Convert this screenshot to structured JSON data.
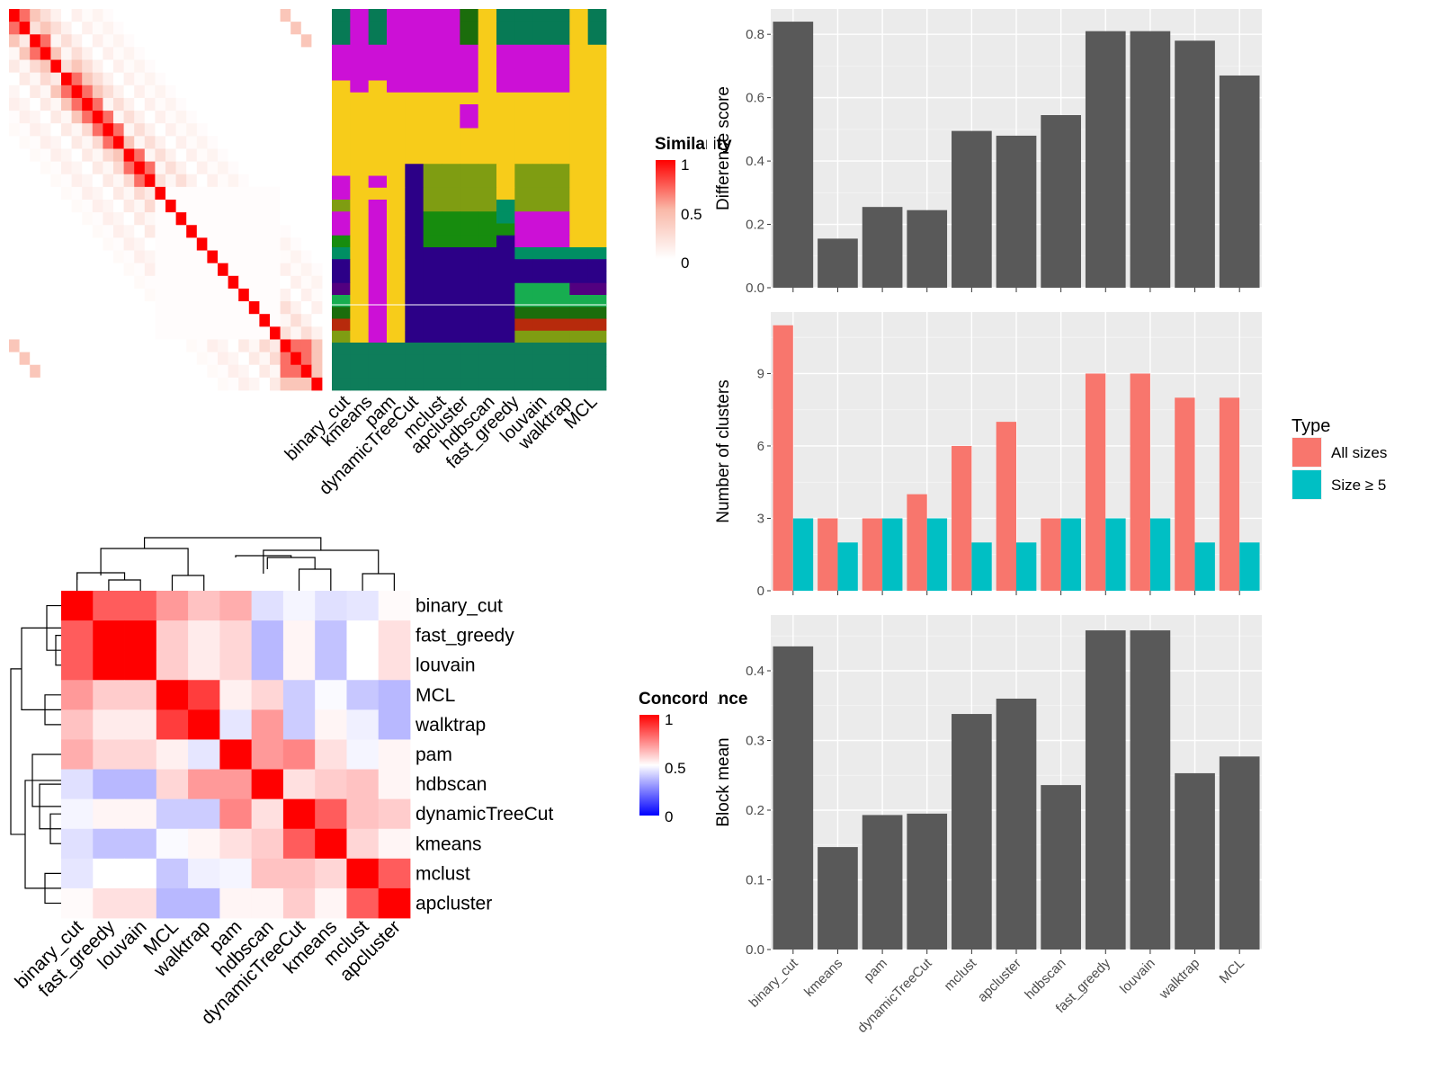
{
  "chart_data": [
    {
      "type": "heatmap",
      "title": "",
      "legend_title": "Similarity",
      "legend_ticks": [
        "1",
        "0.5",
        "0"
      ],
      "colors": {
        "low": "#ffffff",
        "mid": "#f9b8a8",
        "high": "#ff0000"
      },
      "size": 30,
      "strong_blocks": [
        [
          0,
          1
        ],
        [
          2,
          3
        ],
        [
          5,
          6
        ],
        [
          6,
          7
        ],
        [
          7,
          8
        ],
        [
          8,
          9
        ],
        [
          9,
          10
        ],
        [
          10,
          11
        ],
        [
          11,
          12
        ],
        [
          12,
          13
        ],
        [
          26,
          27
        ],
        [
          26,
          28
        ],
        [
          27,
          28
        ]
      ],
      "medium_blocks": [
        [
          0,
          2
        ],
        [
          1,
          3
        ],
        [
          3,
          4
        ],
        [
          4,
          6
        ],
        [
          5,
          7
        ],
        [
          6,
          8
        ],
        [
          10,
          11
        ],
        [
          26,
          29
        ],
        [
          27,
          29
        ],
        [
          28,
          29
        ],
        [
          0,
          26
        ],
        [
          1,
          27
        ],
        [
          2,
          28
        ]
      ]
    },
    {
      "type": "heatmap",
      "title": "",
      "columns": [
        "binary_cut",
        "kmeans",
        "pam",
        "dynamicTreeCut",
        "mclust",
        "apcluster",
        "hdbscan",
        "fast_greedy",
        "louvain",
        "walktrap",
        "MCL"
      ],
      "palette": {
        "G": "#077a55",
        "M": "#cc10d6",
        "Y": "#f7cc1a",
        "N": "#2c0087",
        "O": "#7f9d12",
        "B": "#178c0e",
        "T": "#008f63",
        "L": "#17ad50",
        "D": "#1b6d0c",
        "R": "#b72a0c",
        "P": "#520080",
        "K": "#0e7d5a",
        "W": "#ffffff"
      },
      "rows": [
        "GMGMMMMDYGGGGYG",
        "GMGMMMMDYGGGGYG",
        "GMGMMMMDYGGGGYG",
        "MMMMMMMMYMMMMYY",
        "MMMMMMMMYMMMMYY",
        "MMMMMMMMYMMMMYY",
        "YMYMMMMMYMMMMYY",
        "YYYYYYYYYYYYYYY",
        "YYYYYYYMYYYYYYY",
        "YYYYYYYMYYYYYYY",
        "YYYYYYYYYYYYYYY",
        "YYYYYYYYYYYYYYY",
        "YYYYYYYYYYYYYYY",
        "YYYYNOOOOYOOOYY",
        "MYMYNOOOOYOOOYY",
        "MYYYNOOOOYOOOYY",
        "OYMYNOOOOTOOOYY",
        "MYMYNBBBBTMMMYY",
        "MYMYNBBBBBMMMYY",
        "BYMYNBBBBNMMMYY",
        "TYMYNNNNNNTTTTT",
        "NYMYNNNNNNNNNNN",
        "NYMYNNNNNNNNNNN",
        "PYMYNNNNNNLLLPP",
        "LYMYNNNNNNLLLLL",
        "DYMYNNNNNNDDDDD",
        "RYMYNNNNNNRRRRR",
        "OYMYNNNNNNOOOOO",
        "KKKKKKKKKKKKKKK",
        "KKKKKKKKKKKKKKK",
        "KKKKKKKKKKKKKKK",
        "KKKKKKKKKKKKKKK"
      ]
    },
    {
      "type": "heatmap",
      "title": "",
      "legend_title": "Concordance",
      "legend_ticks": [
        "1",
        "0.5",
        "0"
      ],
      "colors": {
        "low": "#0000ff",
        "mid": "#ffffff",
        "high": "#ff0000"
      },
      "row_labels": [
        "binary_cut",
        "fast_greedy",
        "louvain",
        "MCL",
        "walktrap",
        "pam",
        "hdbscan",
        "dynamicTreeCut",
        "kmeans",
        "mclust",
        "apcluster"
      ],
      "col_labels": [
        "binary_cut",
        "fast_greedy",
        "louvain",
        "MCL",
        "walktrap",
        "pam",
        "hdbscan",
        "dynamicTreeCut",
        "kmeans",
        "mclust",
        "apcluster"
      ],
      "values": [
        [
          1.0,
          0.82,
          0.82,
          0.7,
          0.62,
          0.66,
          0.44,
          0.48,
          0.44,
          0.45,
          0.51
        ],
        [
          0.82,
          1.0,
          1.0,
          0.6,
          0.54,
          0.58,
          0.36,
          0.52,
          0.38,
          0.5,
          0.56
        ],
        [
          0.82,
          1.0,
          1.0,
          0.6,
          0.54,
          0.58,
          0.36,
          0.52,
          0.38,
          0.5,
          0.56
        ],
        [
          0.7,
          0.6,
          0.6,
          1.0,
          0.88,
          0.53,
          0.58,
          0.4,
          0.49,
          0.39,
          0.36
        ],
        [
          0.62,
          0.54,
          0.54,
          0.88,
          1.0,
          0.45,
          0.7,
          0.4,
          0.52,
          0.47,
          0.36
        ],
        [
          0.66,
          0.58,
          0.58,
          0.53,
          0.45,
          1.0,
          0.7,
          0.74,
          0.56,
          0.48,
          0.52
        ],
        [
          0.44,
          0.36,
          0.36,
          0.58,
          0.7,
          0.7,
          1.0,
          0.56,
          0.6,
          0.62,
          0.52
        ],
        [
          0.48,
          0.52,
          0.52,
          0.4,
          0.4,
          0.74,
          0.56,
          1.0,
          0.82,
          0.62,
          0.6
        ],
        [
          0.44,
          0.38,
          0.38,
          0.49,
          0.52,
          0.56,
          0.6,
          0.82,
          1.0,
          0.58,
          0.52
        ],
        [
          0.45,
          0.5,
          0.5,
          0.39,
          0.47,
          0.48,
          0.62,
          0.62,
          0.58,
          1.0,
          0.82
        ],
        [
          0.51,
          0.56,
          0.56,
          0.36,
          0.36,
          0.52,
          0.52,
          0.6,
          0.52,
          0.82,
          1.0
        ]
      ]
    },
    {
      "type": "bar",
      "title": "",
      "categories": [
        "binary_cut",
        "kmeans",
        "pam",
        "dynamicTreeCut",
        "mclust",
        "apcluster",
        "hdbscan",
        "fast_greedy",
        "louvain",
        "walktrap",
        "MCL"
      ],
      "values": [
        0.84,
        0.155,
        0.255,
        0.245,
        0.495,
        0.48,
        0.545,
        0.81,
        0.81,
        0.78,
        0.67
      ],
      "ylabel": "Difference score",
      "yticks": [
        "0.0",
        "0.2",
        "0.4",
        "0.6",
        "0.8"
      ],
      "ylim": [
        0,
        0.88
      ],
      "color": "#595959"
    },
    {
      "type": "bar",
      "title": "",
      "categories": [
        "binary_cut",
        "kmeans",
        "pam",
        "dynamicTreeCut",
        "mclust",
        "apcluster",
        "hdbscan",
        "fast_greedy",
        "louvain",
        "walktrap",
        "MCL"
      ],
      "series": [
        {
          "name": "All sizes",
          "values": [
            11,
            3,
            3,
            4,
            6,
            7,
            3,
            9,
            9,
            8,
            8
          ],
          "color": "#f8766d"
        },
        {
          "name": "Size ≥ 5",
          "values": [
            3,
            2,
            3,
            3,
            2,
            2,
            3,
            3,
            3,
            2,
            2
          ],
          "color": "#00bfc4"
        }
      ],
      "ylabel": "Number of clusters",
      "yticks": [
        "0",
        "3",
        "6",
        "9"
      ],
      "ylim": [
        0,
        11.55
      ],
      "legend_title": "Type",
      "legend": "right"
    },
    {
      "type": "bar",
      "title": "",
      "categories": [
        "binary_cut",
        "kmeans",
        "pam",
        "dynamicTreeCut",
        "mclust",
        "apcluster",
        "hdbscan",
        "fast_greedy",
        "louvain",
        "walktrap",
        "MCL"
      ],
      "values": [
        0.435,
        0.147,
        0.193,
        0.195,
        0.338,
        0.36,
        0.236,
        0.458,
        0.458,
        0.253,
        0.277
      ],
      "ylabel": "Block mean",
      "yticks": [
        "0.0",
        "0.1",
        "0.2",
        "0.3",
        "0.4"
      ],
      "ylim": [
        0,
        0.48
      ],
      "color": "#595959"
    }
  ]
}
